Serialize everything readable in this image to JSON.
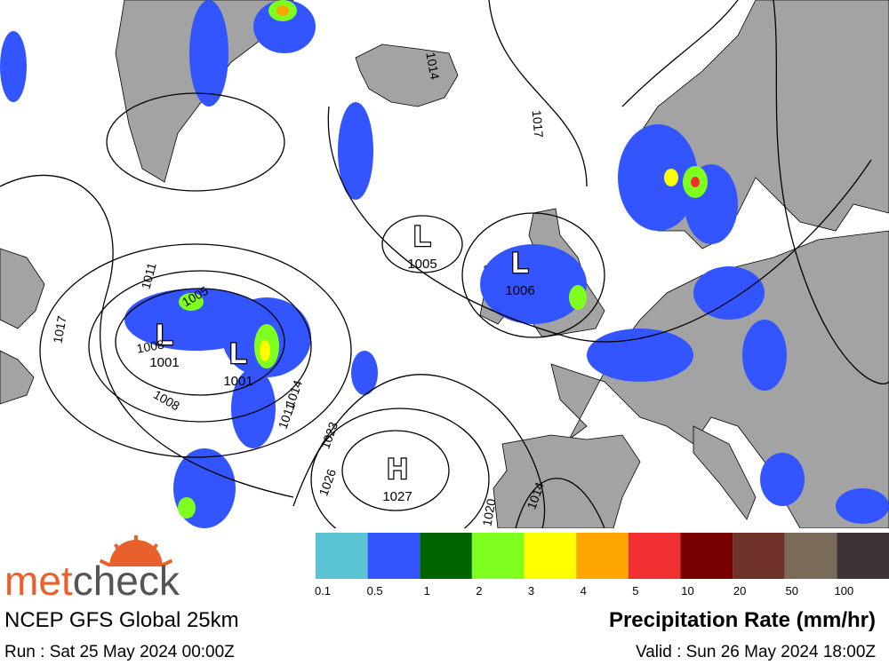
{
  "map": {
    "pressure_systems": [
      {
        "label": "L",
        "value": "1005"
      },
      {
        "label": "L",
        "value": "1006"
      },
      {
        "label": "L",
        "value": "1001"
      },
      {
        "label": "L",
        "value": "1001"
      },
      {
        "label": "H",
        "value": "1027"
      }
    ],
    "isobar_labels": [
      "1014",
      "1011",
      "1017",
      "1008",
      "1014",
      "1011",
      "1023",
      "1026",
      "1020",
      "1014",
      "1005",
      "1008",
      "1017"
    ]
  },
  "legend": {
    "title": "Precipitation Rate (mm/hr)",
    "items": [
      {
        "label": "0.1",
        "color": "#5bc4d4"
      },
      {
        "label": "0.5",
        "color": "#3355ff"
      },
      {
        "label": "1",
        "color": "#006400"
      },
      {
        "label": "2",
        "color": "#7fff1e"
      },
      {
        "label": "3",
        "color": "#ffff00"
      },
      {
        "label": "4",
        "color": "#ffa500"
      },
      {
        "label": "5",
        "color": "#f03030"
      },
      {
        "label": "10",
        "color": "#780000"
      },
      {
        "label": "20",
        "color": "#6e3228"
      },
      {
        "label": "50",
        "color": "#7a6a5a"
      },
      {
        "label": "100",
        "color": "#3c3436"
      }
    ]
  },
  "footer": {
    "logo": {
      "met": "met",
      "check": "check"
    },
    "model": "NCEP GFS Global 25km",
    "run": "Run : Sat 25 May 2024 00:00Z",
    "valid": "Valid : Sun 26 May 2024 18:00Z"
  }
}
